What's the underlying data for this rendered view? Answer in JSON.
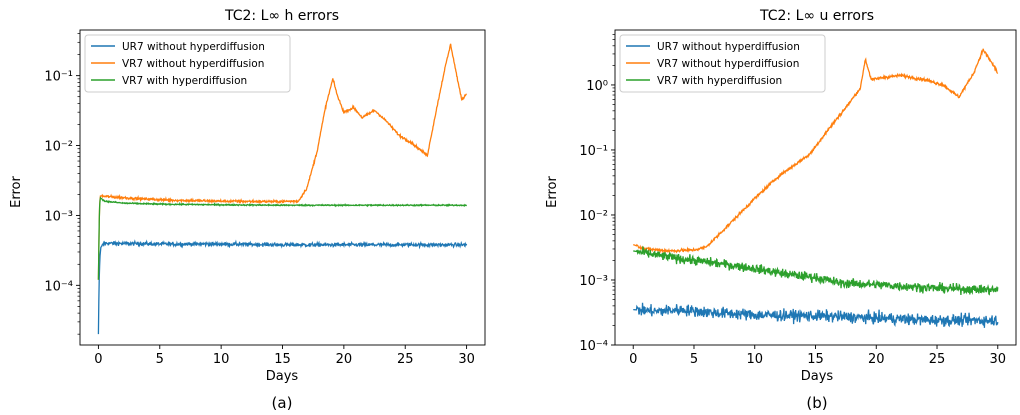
{
  "chart_data": [
    {
      "type": "line",
      "title": "TC2: L∞ h errors",
      "xlabel": "Days",
      "ylabel": "Error",
      "caption": "(a)",
      "xlim": [
        -1.5,
        31.5
      ],
      "ylim": [
        1.4e-05,
        0.45
      ],
      "yscale": "log",
      "xticks": [
        0,
        5,
        10,
        15,
        20,
        25,
        30
      ],
      "xtick_labels": [
        "0",
        "5",
        "10",
        "15",
        "20",
        "25",
        "30"
      ],
      "yticks": [
        0.0001,
        0.001,
        0.01,
        0.1
      ],
      "ytick_labels": [
        "10⁻⁴",
        "10⁻³",
        "10⁻²",
        "10⁻¹"
      ],
      "grid": false,
      "legend_position": "top-left",
      "series": [
        {
          "name": "UR7 without hyperdiffusion",
          "color": "#1f77b4",
          "noise": 0.06,
          "points": [
            [
              0,
              2e-05
            ],
            [
              0.05,
              0.0001
            ],
            [
              0.12,
              0.00025
            ],
            [
              0.2,
              0.00035
            ],
            [
              0.5,
              0.0004
            ],
            [
              5,
              0.00039
            ],
            [
              10,
              0.00039
            ],
            [
              15,
              0.00038
            ],
            [
              20,
              0.00038
            ],
            [
              25,
              0.00038
            ],
            [
              30,
              0.00038
            ]
          ]
        },
        {
          "name": "VR7 without hyperdiffusion",
          "color": "#ff7f0e",
          "noise": 0.04,
          "points": [
            [
              0,
              0.00012
            ],
            [
              0.08,
              0.0012
            ],
            [
              0.15,
              0.0019
            ],
            [
              1,
              0.00185
            ],
            [
              3,
              0.00175
            ],
            [
              6,
              0.00165
            ],
            [
              10,
              0.0016
            ],
            [
              14,
              0.00158
            ],
            [
              16.3,
              0.0016
            ],
            [
              17,
              0.0025
            ],
            [
              17.8,
              0.008
            ],
            [
              18.5,
              0.035
            ],
            [
              19.1,
              0.09
            ],
            [
              19.5,
              0.05
            ],
            [
              20,
              0.03
            ],
            [
              20.8,
              0.035
            ],
            [
              21.5,
              0.025
            ],
            [
              22.5,
              0.032
            ],
            [
              23.5,
              0.022
            ],
            [
              24.5,
              0.014
            ],
            [
              25.5,
              0.011
            ],
            [
              26.8,
              0.0072
            ],
            [
              27.5,
              0.03
            ],
            [
              28.2,
              0.12
            ],
            [
              28.7,
              0.28
            ],
            [
              29.2,
              0.1
            ],
            [
              29.6,
              0.045
            ],
            [
              30,
              0.055
            ]
          ]
        },
        {
          "name": "VR7 with hyperdiffusion",
          "color": "#2ca02c",
          "noise": 0.02,
          "points": [
            [
              0,
              0.00012
            ],
            [
              0.08,
              0.0012
            ],
            [
              0.15,
              0.0018
            ],
            [
              0.5,
              0.0016
            ],
            [
              2,
              0.0015
            ],
            [
              5,
              0.00145
            ],
            [
              10,
              0.00142
            ],
            [
              15,
              0.0014
            ],
            [
              20,
              0.0014
            ],
            [
              25,
              0.0014
            ],
            [
              30,
              0.0014
            ]
          ]
        }
      ]
    },
    {
      "type": "line",
      "title": "TC2: L∞ u errors",
      "xlabel": "Days",
      "ylabel": "Error",
      "caption": "(b)",
      "xlim": [
        -1.5,
        31.5
      ],
      "ylim": [
        0.0001,
        7
      ],
      "yscale": "log",
      "xticks": [
        0,
        5,
        10,
        15,
        20,
        25,
        30
      ],
      "xtick_labels": [
        "0",
        "5",
        "10",
        "15",
        "20",
        "25",
        "30"
      ],
      "yticks": [
        0.0001,
        0.001,
        0.01,
        0.1,
        1
      ],
      "ytick_labels": [
        "10⁻⁴",
        "10⁻³",
        "10⁻²",
        "10⁻¹",
        "10⁰"
      ],
      "grid": false,
      "legend_position": "top-left",
      "series": [
        {
          "name": "UR7 without hyperdiffusion",
          "color": "#1f77b4",
          "noise": 0.2,
          "points": [
            [
              0,
              0.00035
            ],
            [
              2,
              0.00033
            ],
            [
              4,
              0.00035
            ],
            [
              6,
              0.00032
            ],
            [
              10,
              0.00029
            ],
            [
              15,
              0.00028
            ],
            [
              20,
              0.00026
            ],
            [
              25,
              0.00024
            ],
            [
              30,
              0.00024
            ]
          ]
        },
        {
          "name": "VR7 without hyperdiffusion",
          "color": "#ff7f0e",
          "noise": 0.05,
          "points": [
            [
              0,
              0.0035
            ],
            [
              1,
              0.003
            ],
            [
              3,
              0.0028
            ],
            [
              5,
              0.0029
            ],
            [
              6,
              0.0032
            ],
            [
              8,
              0.0075
            ],
            [
              10,
              0.018
            ],
            [
              12,
              0.04
            ],
            [
              14.5,
              0.085
            ],
            [
              16,
              0.2
            ],
            [
              17.5,
              0.45
            ],
            [
              18.7,
              0.9
            ],
            [
              19.1,
              2.5
            ],
            [
              19.6,
              1.2
            ],
            [
              20.5,
              1.3
            ],
            [
              22,
              1.4
            ],
            [
              24,
              1.2
            ],
            [
              25.5,
              1.0
            ],
            [
              26.8,
              0.65
            ],
            [
              28,
              1.5
            ],
            [
              28.8,
              3.5
            ],
            [
              29.3,
              2.5
            ],
            [
              29.8,
              1.8
            ],
            [
              30,
              1.5
            ]
          ]
        },
        {
          "name": "VR7 with hyperdiffusion",
          "color": "#2ca02c",
          "noise": 0.16,
          "points": [
            [
              0,
              0.0028
            ],
            [
              2,
              0.0024
            ],
            [
              4,
              0.0021
            ],
            [
              6,
              0.0019
            ],
            [
              8,
              0.0017
            ],
            [
              10,
              0.0015
            ],
            [
              13,
              0.0012
            ],
            [
              15,
              0.0011
            ],
            [
              17,
              0.0009
            ],
            [
              20,
              0.00085
            ],
            [
              25,
              0.00075
            ],
            [
              30,
              0.0007
            ]
          ]
        }
      ]
    }
  ]
}
